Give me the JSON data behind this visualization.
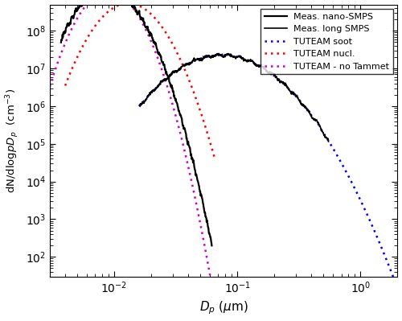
{
  "xlim": [
    0.003,
    2.0
  ],
  "ylim": [
    30,
    500000000.0
  ],
  "xlabel": "D_p (μm)",
  "ylabel": "dN/dlogpD_p  (cm⁻³)",
  "legend_entries": [
    {
      "label": "Meas. nano-SMPS",
      "color": "#000000",
      "linestyle": "solid",
      "linewidth": 1.6
    },
    {
      "label": "Meas. long SMPS",
      "color": "#000000",
      "linestyle": "solid",
      "linewidth": 1.2
    },
    {
      "label": "TUTEAM soot",
      "color": "#0000ff",
      "linestyle": "dotted",
      "linewidth": 1.8
    },
    {
      "label": "TUTEAM nucl.",
      "color": "#ff0000",
      "linestyle": "dotted",
      "linewidth": 1.8
    },
    {
      "label": "TUTEAM - no Tammet",
      "color": "#cc00cc",
      "linestyle": "dotted",
      "linewidth": 1.8
    }
  ],
  "soot_mode": {
    "color": "#0000ff",
    "gmd": 0.075,
    "gsd": 1.85,
    "N": 35000000.0
  },
  "nucl_mode": {
    "color": "#ff0000",
    "gmd": 0.013,
    "gsd": 1.45,
    "N": 500000000.0
  },
  "no_tammet_mode": {
    "color": "#cc00cc",
    "gmd": 0.009,
    "gsd": 1.38,
    "N": 900000000.0
  },
  "nano_x_min": 0.0037,
  "nano_x_max": 0.062,
  "long_x_min": 0.016,
  "long_x_max": 0.55,
  "soot_x_min": 0.016,
  "soot_x_max": 2.0
}
